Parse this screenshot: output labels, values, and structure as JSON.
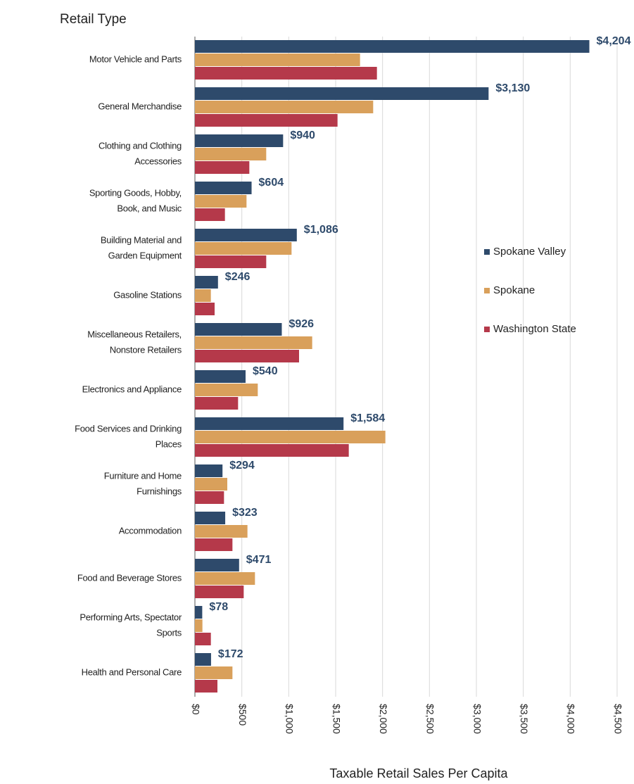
{
  "chart_data": {
    "type": "hbar",
    "title": "Retail Type",
    "x_label": "Taxable Retail Sales Per Capita",
    "categories": [
      "Motor Vehicle and Parts",
      "General Merchandise",
      "Clothing and Clothing Accessories",
      "Sporting Goods, Hobby, Book, and Music",
      "Building Material and Garden Equipment",
      "Gasoline Stations",
      "Miscellaneous Retailers, Nonstore Retailers",
      "Electronics and Appliance",
      "Food Services and Drinking Places",
      "Furniture and Home Furnishings",
      "Accommodation",
      "Food and Beverage Stores",
      "Performing Arts, Spectator Sports",
      "Health and Personal Care"
    ],
    "series": [
      {
        "name": "Spokane Valley",
        "color": "#2e4a6b",
        "values": [
          4204,
          3130,
          940,
          604,
          1086,
          246,
          926,
          540,
          1584,
          294,
          323,
          471,
          78,
          172
        ],
        "value_labels": [
          "$4,204",
          "$3,130",
          "$940",
          "$604",
          "$1,086",
          "$246",
          "$926",
          "$540",
          "$1,584",
          "$294",
          "$323",
          "$471",
          "$78",
          "$172"
        ]
      },
      {
        "name": "Spokane",
        "color": "#d9a05b",
        "values": [
          1760,
          1900,
          760,
          550,
          1030,
          170,
          1250,
          670,
          2030,
          345,
          560,
          640,
          80,
          400
        ]
      },
      {
        "name": "Washington State",
        "color": "#b5394a",
        "values": [
          1940,
          1520,
          580,
          320,
          760,
          210,
          1110,
          460,
          1640,
          310,
          400,
          520,
          170,
          240
        ]
      }
    ],
    "xlim": [
      0,
      4500
    ],
    "xticks": [
      {
        "value": 0,
        "label": "$0"
      },
      {
        "value": 500,
        "label": "$500"
      },
      {
        "value": 1000,
        "label": "$1,000"
      },
      {
        "value": 1500,
        "label": "$1,500"
      },
      {
        "value": 2000,
        "label": "$2,000"
      },
      {
        "value": 2500,
        "label": "$2,500"
      },
      {
        "value": 3000,
        "label": "$3,000"
      },
      {
        "value": 3500,
        "label": "$3,500"
      },
      {
        "value": 4000,
        "label": "$4,000"
      },
      {
        "value": 4500,
        "label": "$4,500"
      }
    ],
    "grid": true
  }
}
